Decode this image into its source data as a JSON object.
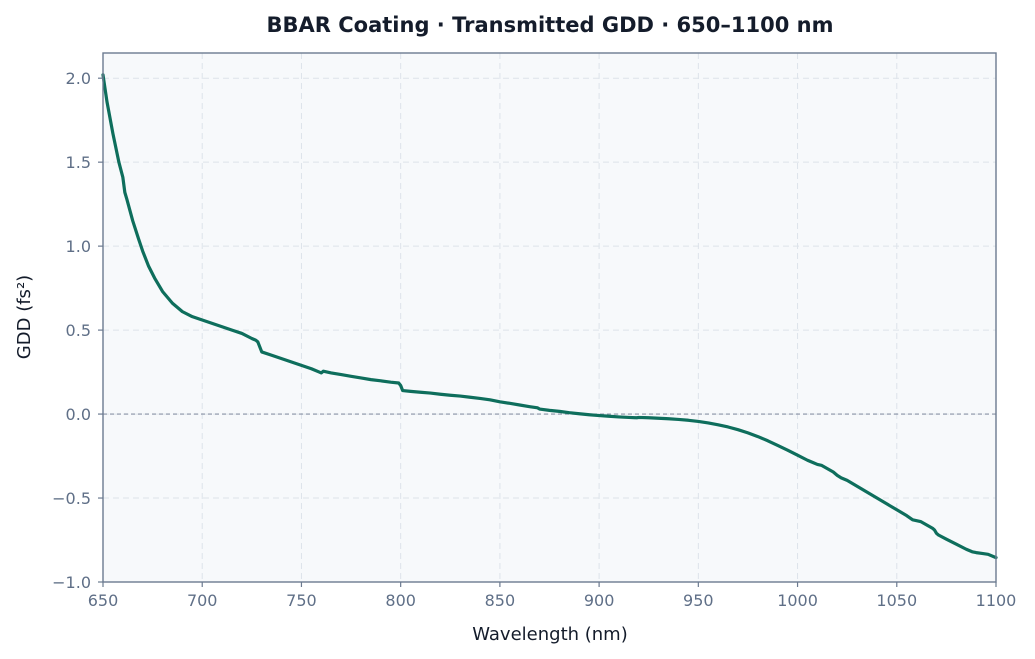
{
  "chart_data": {
    "type": "line",
    "title": "BBAR Coating · Transmitted GDD · 650–1100 nm",
    "xlabel": "Wavelength (nm)",
    "ylabel": "GDD (fs²)",
    "xlim": [
      650,
      1100
    ],
    "ylim": [
      -1.0,
      2.15
    ],
    "x_ticks": [
      650,
      700,
      750,
      800,
      850,
      900,
      950,
      1000,
      1050,
      1100
    ],
    "y_ticks": [
      -1.0,
      -0.5,
      0.0,
      0.5,
      1.0,
      1.5,
      2.0
    ],
    "x_tick_labels": [
      "650",
      "700",
      "750",
      "800",
      "850",
      "900",
      "950",
      "1000",
      "1050",
      "1100"
    ],
    "y_tick_labels": [
      "−1.0",
      "−0.5",
      "0.0",
      "0.5",
      "1.0",
      "1.5",
      "2.0"
    ],
    "grid": true,
    "reference_line_y": 0.0,
    "colors": {
      "line": "#0e6e5c",
      "plot_bg": "#f7f9fb",
      "grid": "#dde3ea",
      "axis": "#6b7a90",
      "zero_line": "#8a93a6"
    },
    "series": [
      {
        "x": [
          650,
          652,
          655,
          658,
          660,
          661,
          662,
          665,
          668,
          670,
          673,
          676,
          680,
          685,
          690,
          695,
          700,
          705,
          710,
          715,
          720,
          725,
          727,
          728,
          730,
          735,
          740,
          745,
          750,
          755,
          759,
          760,
          761,
          765,
          770,
          775,
          780,
          785,
          790,
          795,
          799,
          800,
          801,
          805,
          810,
          815,
          820,
          825,
          830,
          835,
          840,
          845,
          850,
          855,
          860,
          865,
          869,
          870,
          875,
          880,
          885,
          890,
          895,
          900,
          905,
          910,
          915,
          919,
          920,
          925,
          930,
          935,
          940,
          945,
          950,
          955,
          960,
          965,
          970,
          975,
          980,
          985,
          990,
          995,
          1000,
          1005,
          1008,
          1010,
          1012,
          1015,
          1018,
          1020,
          1022,
          1025,
          1030,
          1035,
          1040,
          1045,
          1050,
          1055,
          1058,
          1060,
          1062,
          1065,
          1068,
          1069,
          1070,
          1071,
          1075,
          1080,
          1085,
          1088,
          1090,
          1093,
          1096,
          1100
        ],
        "values": [
          2.02,
          1.86,
          1.67,
          1.5,
          1.41,
          1.32,
          1.28,
          1.15,
          1.04,
          0.97,
          0.88,
          0.81,
          0.73,
          0.66,
          0.61,
          0.58,
          0.56,
          0.54,
          0.52,
          0.5,
          0.48,
          0.45,
          0.44,
          0.43,
          0.37,
          0.35,
          0.33,
          0.31,
          0.29,
          0.27,
          0.25,
          0.245,
          0.255,
          0.245,
          0.235,
          0.225,
          0.215,
          0.205,
          0.198,
          0.19,
          0.185,
          0.17,
          0.14,
          0.135,
          0.13,
          0.125,
          0.118,
          0.112,
          0.107,
          0.1,
          0.093,
          0.085,
          0.073,
          0.064,
          0.054,
          0.044,
          0.037,
          0.03,
          0.022,
          0.016,
          0.008,
          0.002,
          -0.004,
          -0.009,
          -0.013,
          -0.017,
          -0.02,
          -0.022,
          -0.02,
          -0.022,
          -0.025,
          -0.028,
          -0.032,
          -0.037,
          -0.044,
          -0.053,
          -0.064,
          -0.077,
          -0.093,
          -0.112,
          -0.134,
          -0.159,
          -0.187,
          -0.215,
          -0.245,
          -0.275,
          -0.29,
          -0.3,
          -0.305,
          -0.325,
          -0.345,
          -0.365,
          -0.38,
          -0.395,
          -0.43,
          -0.465,
          -0.5,
          -0.535,
          -0.57,
          -0.605,
          -0.63,
          -0.635,
          -0.64,
          -0.66,
          -0.68,
          -0.69,
          -0.71,
          -0.72,
          -0.745,
          -0.775,
          -0.805,
          -0.82,
          -0.825,
          -0.83,
          -0.835,
          -0.855
        ]
      }
    ]
  }
}
